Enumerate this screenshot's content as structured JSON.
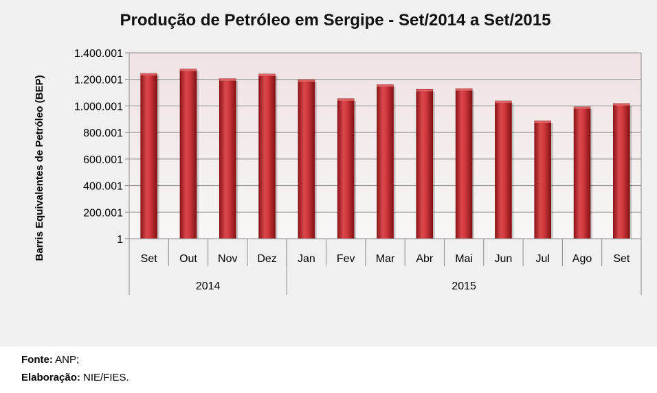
{
  "chart_data": {
    "type": "bar",
    "title": "Produção de Petróleo em Sergipe - Set/2014 a Set/2015",
    "ylabel": "Barris Equivalentes de Petróleo (BEP)",
    "xlabel": "",
    "categories": [
      "Set",
      "Out",
      "Nov",
      "Dez",
      "Jan",
      "Fev",
      "Mar",
      "Abr",
      "Mai",
      "Jun",
      "Jul",
      "Ago",
      "Set"
    ],
    "groups": [
      {
        "label": "2014",
        "count": 4
      },
      {
        "label": "2015",
        "count": 9
      }
    ],
    "values": [
      1245000,
      1278000,
      1205000,
      1240000,
      1198000,
      1055000,
      1160000,
      1125000,
      1130000,
      1038000,
      888000,
      993000,
      1018000
    ],
    "yticks": [
      "1",
      "200.001",
      "400.001",
      "600.001",
      "800.001",
      "1.000.001",
      "1.200.001",
      "1.400.001"
    ],
    "ylim": [
      1,
      1400001
    ],
    "grid": true,
    "bar_color": "#c0272d"
  },
  "footer": {
    "source_label": "Fonte:",
    "source_value": "ANP;",
    "elaboration_label": "Elaboração:",
    "elaboration_value": "NIE/FIES."
  }
}
